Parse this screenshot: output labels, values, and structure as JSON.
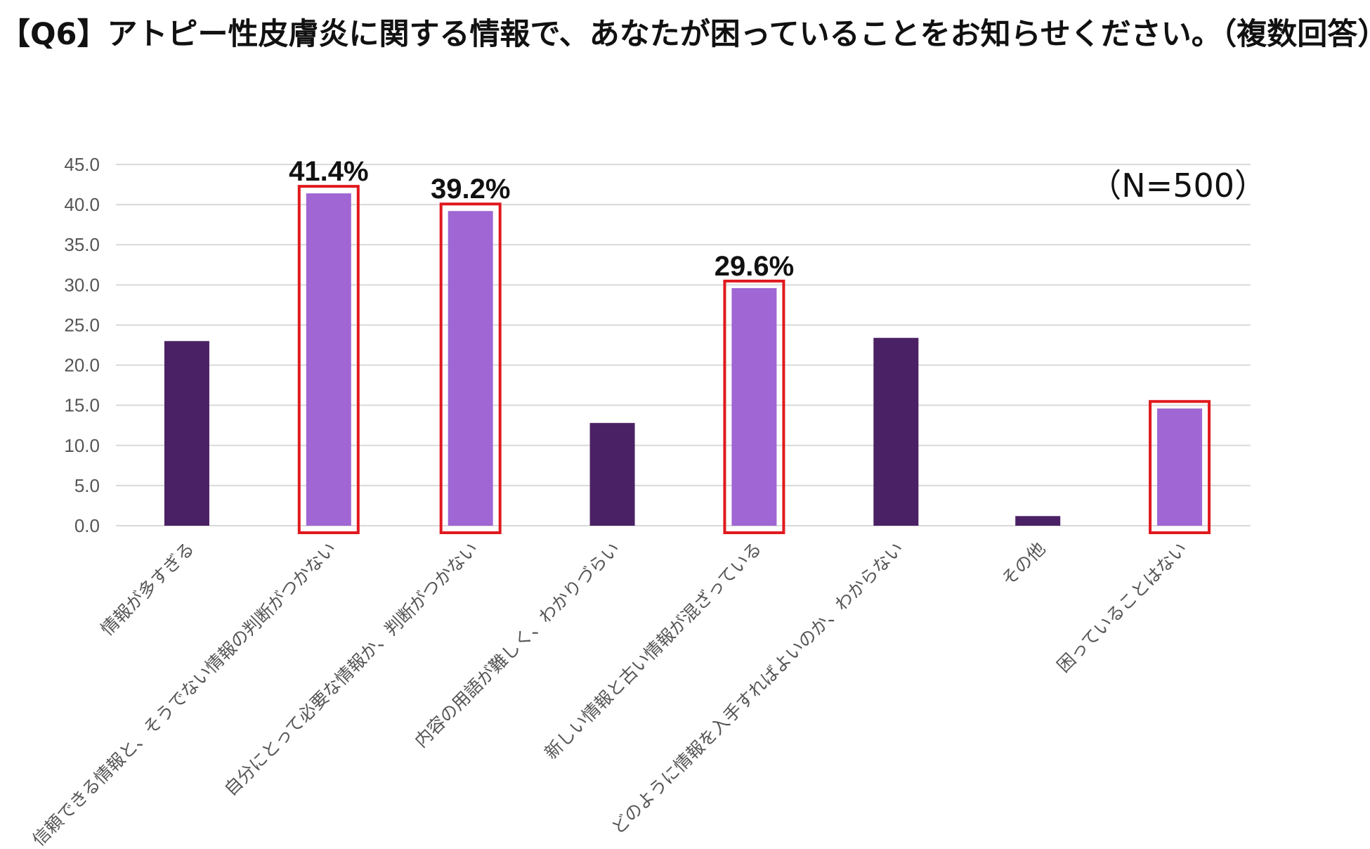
{
  "title": "【Q6】アトピー性皮膚炎に関する情報で、あなたが困っていることをお知らせください。（複数回答）",
  "sample_label": "（N=500）",
  "colors": {
    "default_bar": "#4b2165",
    "highlight_bar": "#a066d3",
    "highlight_border": "#e0191e",
    "grid": "#d9d9d9"
  },
  "chart_data": {
    "type": "bar",
    "title": "【Q6】アトピー性皮膚炎に関する情報で、あなたが困っていることをお知らせください。（複数回答）",
    "ylim": [
      0,
      45
    ],
    "yticks": [
      "0.0",
      "5.0",
      "10.0",
      "15.0",
      "20.0",
      "25.0",
      "30.0",
      "35.0",
      "40.0",
      "45.0"
    ],
    "grid": true,
    "categories": [
      "情報が多すぎる",
      "信頼できる情報と、そうでない情報の判断がつかない",
      "自分にとって必要な情報か、判断がつかない",
      "内容の用語が難しく、わかりづらい",
      "新しい情報と古い情報が混ざっている",
      "どのように情報を入手すればよいのか、わからない",
      "その他",
      "困っていることはない"
    ],
    "values": [
      23.0,
      41.4,
      39.2,
      12.8,
      29.6,
      23.4,
      1.2,
      14.6
    ],
    "highlighted": [
      false,
      true,
      true,
      false,
      true,
      false,
      false,
      true
    ],
    "data_labels": [
      "",
      "41.4%",
      "39.2%",
      "",
      "29.6%",
      "",
      "",
      ""
    ]
  }
}
